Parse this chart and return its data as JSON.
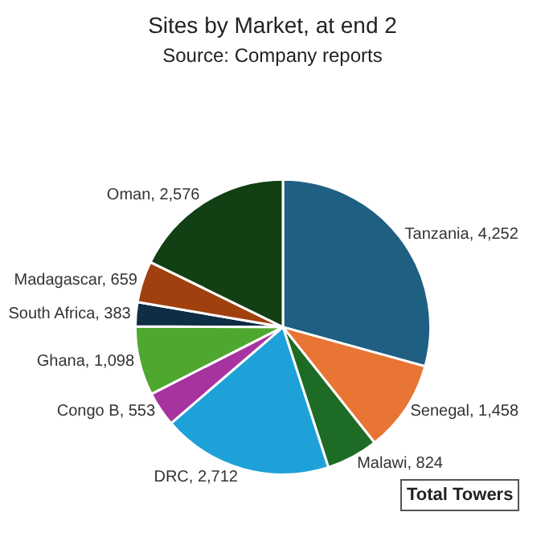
{
  "chart_data": {
    "type": "pie",
    "title": "Sites by Market, at end 2",
    "subtitle": "Source: Company reports",
    "categories": [
      "Tanzania",
      "Senegal",
      "Malawi",
      "DRC",
      "Congo B",
      "Ghana",
      "South Africa",
      "Madagascar",
      "Oman"
    ],
    "values": [
      4252,
      1458,
      824,
      2712,
      553,
      1098,
      383,
      659,
      2576
    ],
    "colors": [
      "#1f5f82",
      "#e87533",
      "#1e6b25",
      "#1ea1d8",
      "#a6339f",
      "#4ea72e",
      "#0f2d45",
      "#a0400e",
      "#123f14"
    ],
    "value_labels": [
      "4,252",
      "1,458",
      "824",
      "2,712",
      "553",
      "1,098",
      "383",
      "659",
      "2,576"
    ],
    "legend": false,
    "annotations": [
      "Total Towers"
    ]
  }
}
